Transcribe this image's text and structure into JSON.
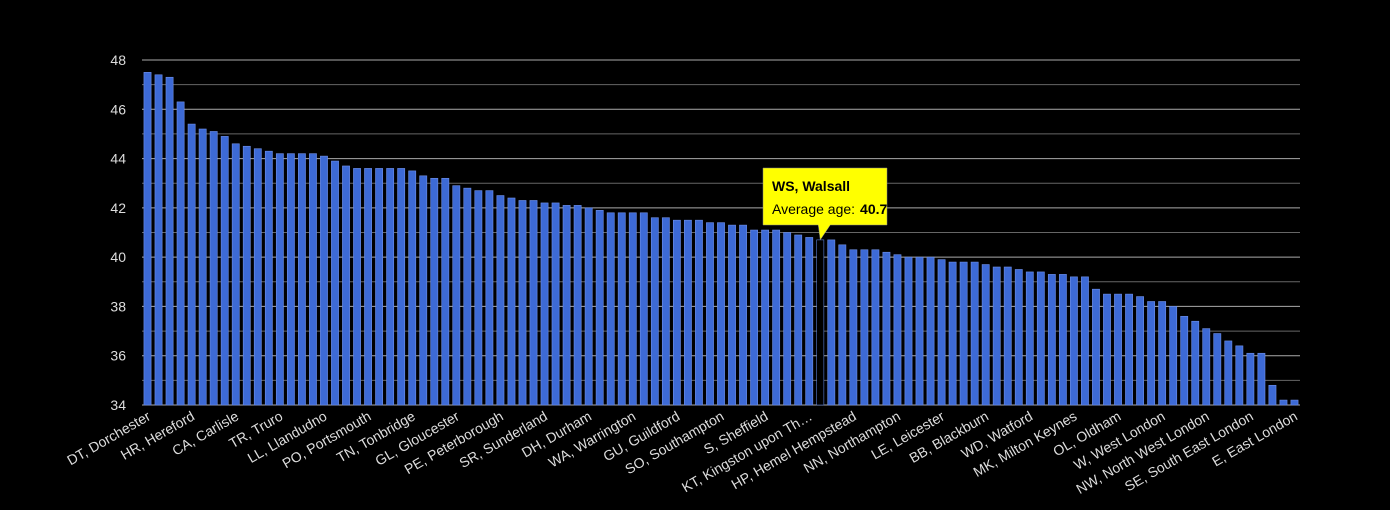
{
  "chart_data": {
    "type": "bar",
    "categories": [
      "DT, Dorchester",
      null,
      null,
      null,
      "HR, Hereford",
      null,
      null,
      null,
      "CA, Carlisle",
      null,
      null,
      null,
      "TR, Truro",
      null,
      null,
      null,
      "LL, Llandudno",
      null,
      null,
      null,
      "PO, Portsmouth",
      null,
      null,
      null,
      "TN, Tonbridge",
      null,
      null,
      null,
      "GL, Gloucester",
      null,
      null,
      null,
      "PE, Peterborough",
      null,
      null,
      null,
      "SR, Sunderland",
      null,
      null,
      null,
      "DH, Durham",
      null,
      null,
      null,
      "WA, Warrington",
      null,
      null,
      null,
      "GU, Guildford",
      null,
      null,
      null,
      "SO, Southampton",
      null,
      null,
      null,
      "S, Sheffield",
      null,
      null,
      null,
      "KT, Kingston upon Th…",
      null,
      null,
      null,
      "HP, Hemel Hempstead",
      null,
      null,
      null,
      "NN, Northampton",
      null,
      null,
      null,
      "LE, Leicester",
      null,
      null,
      null,
      "BB, Blackburn",
      null,
      null,
      null,
      "WD, Watford",
      null,
      null,
      null,
      "MK, Milton Keynes",
      null,
      null,
      null,
      "OL, Oldham",
      null,
      null,
      null,
      "W, West London",
      null,
      null,
      null,
      "NW, North West London",
      null,
      null,
      null,
      "SE, South East London",
      null,
      null,
      null,
      "E, East London"
    ],
    "values": [
      47.5,
      47.4,
      47.3,
      46.3,
      45.4,
      45.2,
      45.1,
      44.9,
      44.6,
      44.5,
      44.4,
      44.3,
      44.2,
      44.2,
      44.2,
      44.2,
      44.1,
      43.9,
      43.7,
      43.6,
      43.6,
      43.6,
      43.6,
      43.6,
      43.5,
      43.3,
      43.2,
      43.2,
      42.9,
      42.8,
      42.7,
      42.7,
      42.5,
      42.4,
      42.3,
      42.3,
      42.2,
      42.2,
      42.1,
      42.1,
      42.0,
      41.9,
      41.8,
      41.8,
      41.8,
      41.8,
      41.6,
      41.6,
      41.5,
      41.5,
      41.5,
      41.4,
      41.4,
      41.3,
      41.3,
      41.1,
      41.1,
      41.1,
      41.0,
      40.9,
      40.8,
      40.7,
      40.7,
      40.5,
      40.3,
      40.3,
      40.3,
      40.2,
      40.1,
      40.0,
      40.0,
      40.0,
      39.9,
      39.8,
      39.8,
      39.8,
      39.7,
      39.6,
      39.6,
      39.5,
      39.4,
      39.4,
      39.3,
      39.3,
      39.2,
      39.2,
      38.7,
      38.5,
      38.5,
      38.5,
      38.4,
      38.2,
      38.2,
      38.0,
      37.6,
      37.4,
      37.1,
      36.9,
      36.6,
      36.4,
      36.1,
      36.1,
      34.8,
      34.2,
      34.2
    ],
    "color": "#3d6ad6",
    "ylim": [
      34,
      48
    ],
    "yticks": [
      34,
      36,
      38,
      40,
      42,
      44,
      46,
      48
    ],
    "minor_yticks": [
      35,
      37,
      39,
      41,
      43,
      45,
      47
    ],
    "grid": true,
    "tooltip": {
      "index": 61,
      "title": "WS, Walsall",
      "label": "Average age:",
      "value": 40.7
    }
  }
}
